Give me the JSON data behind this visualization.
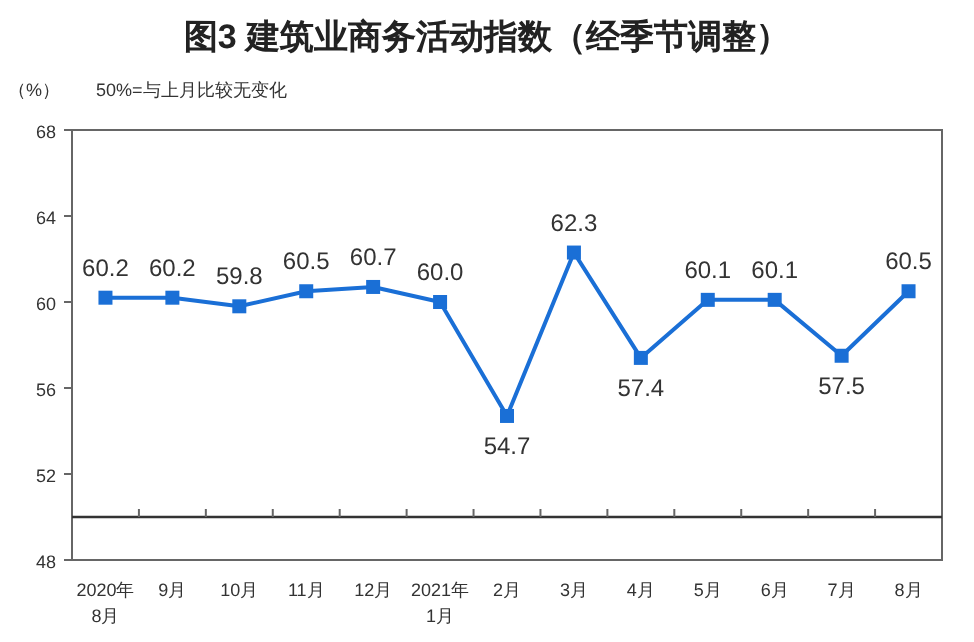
{
  "chart_data": {
    "type": "line",
    "title": "图3  建筑业商务活动指数（经季节调整）",
    "ylabel": "（%）",
    "annotations": [
      "50%=与上月比较无变化"
    ],
    "categories": [
      "2020年\n8月",
      "9月",
      "10月",
      "11月",
      "12月",
      "2021年\n1月",
      "2月",
      "3月",
      "4月",
      "5月",
      "6月",
      "7月",
      "8月"
    ],
    "series": [
      {
        "color": "#1a6fd6",
        "values": [
          60.2,
          60.2,
          59.8,
          60.5,
          60.7,
          60.0,
          54.7,
          62.3,
          57.4,
          60.1,
          60.1,
          57.5,
          60.5
        ]
      }
    ],
    "ylim": [
      48,
      68
    ],
    "yticks": [
      48,
      52,
      56,
      60,
      64,
      68
    ],
    "ref_lines": [
      {
        "axis": "y",
        "value": 50,
        "color": "#333333"
      }
    ],
    "value_labels": [
      "60.2",
      "60.2",
      "59.8",
      "60.5",
      "60.7",
      "60.0",
      "54.7",
      "62.3",
      "57.4",
      "60.1",
      "60.1",
      "57.5",
      "60.5"
    ],
    "marker": "square",
    "line_style": "solid"
  }
}
